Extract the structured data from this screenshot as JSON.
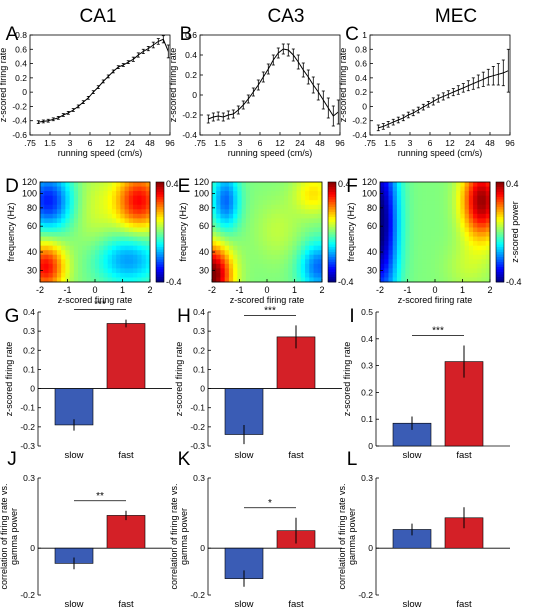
{
  "column_titles": [
    "CA1",
    "CA3",
    "MEC"
  ],
  "panel_letters": [
    "A",
    "B",
    "C",
    "D",
    "E",
    "F",
    "G",
    "H",
    "I",
    "J",
    "K",
    "L"
  ],
  "colors": {
    "slow": "#3A5CB5",
    "fast": "#D42027",
    "axis": "#000000"
  },
  "colorbar_label": "z-scored power",
  "colorbar_ticks": [
    "0.4",
    "-0.4"
  ],
  "chart_data": [
    {
      "id": "A",
      "type": "line",
      "x_ticks": [
        ".75",
        "1.5",
        "3",
        "6",
        "12",
        "24",
        "48",
        "96"
      ],
      "xlabel": "running speed (cm/s)",
      "ylabel": "z-scored firing rate",
      "xscale": "log",
      "ylim": [
        -0.6,
        0.8
      ],
      "y_ticks": [
        -0.6,
        -0.4,
        -0.2,
        0,
        0.2,
        0.4,
        0.6,
        0.8
      ],
      "y_tick_labels": [
        "-0.6",
        "-0.4",
        "-0.2",
        "0",
        "0.2",
        "0.4",
        "0.6",
        "0.8"
      ],
      "x": [
        1.0,
        1.19,
        1.41,
        1.68,
        2.0,
        2.38,
        2.83,
        3.36,
        4.0,
        4.76,
        5.66,
        6.73,
        8.0,
        9.51,
        11.31,
        13.45,
        16.0,
        19.03,
        22.63,
        26.91,
        32.0,
        38.05,
        45.25,
        53.82,
        64.0,
        76.11,
        90.51
      ],
      "y": [
        -0.42,
        -0.41,
        -0.4,
        -0.38,
        -0.36,
        -0.32,
        -0.29,
        -0.25,
        -0.2,
        -0.14,
        -0.08,
        0.0,
        0.07,
        0.15,
        0.22,
        0.29,
        0.35,
        0.38,
        0.42,
        0.46,
        0.52,
        0.57,
        0.61,
        0.66,
        0.71,
        0.74,
        0.57
      ],
      "err": [
        0.02,
        0.02,
        0.02,
        0.02,
        0.02,
        0.02,
        0.02,
        0.02,
        0.02,
        0.02,
        0.02,
        0.02,
        0.02,
        0.02,
        0.02,
        0.02,
        0.02,
        0.02,
        0.02,
        0.03,
        0.03,
        0.03,
        0.03,
        0.04,
        0.04,
        0.05,
        0.09
      ]
    },
    {
      "id": "B",
      "type": "line",
      "x_ticks": [
        ".75",
        "1.5",
        "3",
        "6",
        "12",
        "24",
        "48",
        "96"
      ],
      "xlabel": "running speed (cm/s)",
      "ylabel": "z-scored firing rate",
      "xscale": "log",
      "ylim": [
        -0.4,
        0.6
      ],
      "y_ticks": [
        -0.4,
        -0.2,
        0,
        0.2,
        0.4,
        0.6
      ],
      "y_tick_labels": [
        "-0.4",
        "-0.2",
        "0",
        "0.2",
        "0.4",
        "0.6"
      ],
      "x": [
        1.0,
        1.19,
        1.41,
        1.68,
        2.0,
        2.38,
        2.83,
        3.36,
        4.0,
        4.76,
        5.66,
        6.73,
        8.0,
        9.51,
        11.31,
        13.45,
        16.0,
        19.03,
        22.63,
        26.91,
        32.0,
        38.05,
        45.25,
        53.82,
        64.0,
        76.11,
        90.51
      ],
      "y": [
        -0.24,
        -0.22,
        -0.21,
        -0.22,
        -0.2,
        -0.19,
        -0.15,
        -0.1,
        -0.04,
        0.03,
        0.1,
        0.18,
        0.26,
        0.35,
        0.42,
        0.46,
        0.45,
        0.4,
        0.33,
        0.25,
        0.18,
        0.1,
        0.03,
        -0.05,
        -0.13,
        -0.21,
        -0.17
      ],
      "err": [
        0.04,
        0.04,
        0.04,
        0.04,
        0.04,
        0.04,
        0.04,
        0.04,
        0.04,
        0.04,
        0.05,
        0.05,
        0.05,
        0.05,
        0.05,
        0.05,
        0.06,
        0.06,
        0.07,
        0.07,
        0.07,
        0.08,
        0.08,
        0.09,
        0.1,
        0.1,
        0.12
      ]
    },
    {
      "id": "C",
      "type": "line",
      "x_ticks": [
        ".75",
        "1.5",
        "3",
        "6",
        "12",
        "24",
        "48",
        "96"
      ],
      "xlabel": "running speed (cm/s)",
      "ylabel": "z-scored firing rate",
      "xscale": "log",
      "ylim": [
        -0.4,
        1.0
      ],
      "y_ticks": [
        -0.4,
        -0.2,
        0,
        0.2,
        0.4,
        0.6,
        0.8,
        1
      ],
      "y_tick_labels": [
        "-0.4",
        "-0.2",
        "0",
        "0.2",
        "0.4",
        "0.6",
        "0.8",
        "1"
      ],
      "x": [
        1.0,
        1.19,
        1.41,
        1.68,
        2.0,
        2.38,
        2.83,
        3.36,
        4.0,
        4.76,
        5.66,
        6.73,
        8.0,
        9.51,
        11.31,
        13.45,
        16.0,
        19.03,
        22.63,
        26.91,
        32.0,
        38.05,
        45.25,
        53.82,
        64.0,
        76.11,
        90.51
      ],
      "y": [
        -0.3,
        -0.28,
        -0.25,
        -0.22,
        -0.19,
        -0.16,
        -0.12,
        -0.09,
        -0.05,
        -0.01,
        0.03,
        0.07,
        0.11,
        0.14,
        0.17,
        0.2,
        0.23,
        0.26,
        0.29,
        0.32,
        0.35,
        0.38,
        0.41,
        0.43,
        0.45,
        0.47,
        0.5
      ],
      "err": [
        0.04,
        0.04,
        0.04,
        0.04,
        0.04,
        0.04,
        0.04,
        0.04,
        0.04,
        0.04,
        0.04,
        0.05,
        0.05,
        0.05,
        0.05,
        0.05,
        0.06,
        0.06,
        0.07,
        0.08,
        0.09,
        0.1,
        0.11,
        0.13,
        0.15,
        0.18,
        0.3
      ]
    },
    {
      "id": "D",
      "type": "heatmap",
      "xlabel": "z-scored firing rate",
      "ylabel": "frequency (Hz)",
      "x_ticks": [
        "-2",
        "-1",
        "0",
        "1",
        "2"
      ],
      "y_ticks": [
        "30",
        "40",
        "60",
        "80",
        "100",
        "120"
      ],
      "xlim": [
        -2,
        2
      ],
      "yscale": "log",
      "ylim": [
        25,
        120
      ],
      "clim": [
        -0.4,
        0.4
      ],
      "pattern": [
        {
          "x": -1.8,
          "logf": 1.5,
          "sx": 0.5,
          "sy": 0.12,
          "a": 0.3
        },
        {
          "x": -1.7,
          "logf": 1.95,
          "sx": 0.6,
          "sy": 0.14,
          "a": -0.28
        },
        {
          "x": 1.6,
          "logf": 1.95,
          "sx": 0.6,
          "sy": 0.14,
          "a": 0.3
        },
        {
          "x": 1.2,
          "logf": 1.55,
          "sx": 0.8,
          "sy": 0.12,
          "a": -0.18
        },
        {
          "x": 0.0,
          "logf": 1.9,
          "sx": 0.6,
          "sy": 0.2,
          "a": 0.06
        }
      ]
    },
    {
      "id": "E",
      "type": "heatmap",
      "xlabel": "z-scored firing rate",
      "ylabel": "frequency (Hz)",
      "x_ticks": [
        "-2",
        "-1",
        "0",
        "1",
        "2"
      ],
      "y_ticks": [
        "30",
        "40",
        "60",
        "80",
        "100",
        "120"
      ],
      "xlim": [
        -2,
        2
      ],
      "yscale": "log",
      "ylim": [
        25,
        120
      ],
      "clim": [
        -0.4,
        0.4
      ],
      "pattern": [
        {
          "x": -2.0,
          "logf": 1.45,
          "sx": 0.5,
          "sy": 0.14,
          "a": 0.42
        },
        {
          "x": -1.5,
          "logf": 1.95,
          "sx": 0.35,
          "sy": 0.14,
          "a": -0.22
        },
        {
          "x": 1.9,
          "logf": 1.5,
          "sx": 0.5,
          "sy": 0.12,
          "a": -0.22
        },
        {
          "x": 1.7,
          "logf": 2.0,
          "sx": 0.5,
          "sy": 0.1,
          "a": 0.12
        },
        {
          "x": 0.4,
          "logf": 1.75,
          "sx": 0.6,
          "sy": 0.15,
          "a": 0.05
        }
      ]
    },
    {
      "id": "F",
      "type": "heatmap",
      "xlabel": "z-scored firing rate",
      "ylabel": "frequency (Hz)",
      "x_ticks": [
        "-2",
        "-1",
        "0",
        "1",
        "2"
      ],
      "y_ticks": [
        "30",
        "40",
        "60",
        "80",
        "100",
        "120"
      ],
      "xlim": [
        -2,
        2
      ],
      "yscale": "log",
      "ylim": [
        25,
        120
      ],
      "clim": [
        -0.4,
        0.4
      ],
      "pattern": [
        {
          "x": -2.0,
          "logf": 1.8,
          "sx": 0.45,
          "sy": 0.4,
          "a": -0.42
        },
        {
          "x": 1.7,
          "logf": 1.95,
          "sx": 0.5,
          "sy": 0.18,
          "a": 0.38
        },
        {
          "x": 1.2,
          "logf": 1.5,
          "sx": 0.6,
          "sy": 0.12,
          "a": 0.05
        }
      ]
    },
    {
      "id": "G",
      "type": "bar",
      "categories": [
        "slow",
        "fast"
      ],
      "values": [
        -0.19,
        0.34
      ],
      "errors": [
        0.03,
        0.02
      ],
      "ylabel": "z-scored firing rate",
      "ylim": [
        -0.3,
        0.4
      ],
      "y_ticks": [
        -0.3,
        -0.2,
        -0.1,
        0,
        0.1,
        0.2,
        0.3,
        0.4
      ],
      "y_tick_labels": [
        "-0.3",
        "-0.2",
        "-0.1",
        "0",
        "0.1",
        "0.2",
        "0.3",
        "0.4"
      ],
      "significance": "***"
    },
    {
      "id": "H",
      "type": "bar",
      "categories": [
        "slow",
        "fast"
      ],
      "values": [
        -0.24,
        0.27
      ],
      "errors": [
        0.05,
        0.06
      ],
      "ylabel": "z-scored firing rate",
      "ylim": [
        -0.3,
        0.4
      ],
      "y_ticks": [
        -0.3,
        -0.2,
        -0.1,
        0,
        0.1,
        0.2,
        0.3,
        0.4
      ],
      "y_tick_labels": [
        "-0.3",
        "-0.2",
        "-0.1",
        "0",
        "0.1",
        "0.2",
        "0.3",
        "0.4"
      ],
      "significance": "***"
    },
    {
      "id": "I",
      "type": "bar",
      "categories": [
        "slow",
        "fast"
      ],
      "values": [
        0.085,
        0.315
      ],
      "errors": [
        0.025,
        0.06
      ],
      "ylabel": "z-scored firing rate",
      "ylim": [
        0,
        0.5
      ],
      "y_ticks": [
        0,
        0.1,
        0.2,
        0.3,
        0.4,
        0.5
      ],
      "y_tick_labels": [
        "0",
        "0.1",
        "0.2",
        "0.3",
        "0.4",
        "0.5"
      ],
      "significance": "***"
    },
    {
      "id": "J",
      "type": "bar",
      "categories": [
        "slow",
        "fast"
      ],
      "values": [
        -0.065,
        0.14
      ],
      "errors": [
        0.025,
        0.02
      ],
      "ylabel": "correlation of firing rate vs. gamma power",
      "ylim": [
        -0.2,
        0.3
      ],
      "y_ticks": [
        -0.2,
        0,
        0.3
      ],
      "y_tick_labels": [
        "-0.2",
        "0",
        "0.3"
      ],
      "significance": "**"
    },
    {
      "id": "K",
      "type": "bar",
      "categories": [
        "slow",
        "fast"
      ],
      "values": [
        -0.13,
        0.075
      ],
      "errors": [
        0.035,
        0.055
      ],
      "ylabel": "correlation of firing rate vs. gamma power",
      "ylim": [
        -0.2,
        0.3
      ],
      "y_ticks": [
        -0.2,
        0,
        0.3
      ],
      "y_tick_labels": [
        "-0.2",
        "0",
        "0.3"
      ],
      "significance": "*"
    },
    {
      "id": "L",
      "type": "bar",
      "categories": [
        "slow",
        "fast"
      ],
      "values": [
        0.08,
        0.13
      ],
      "errors": [
        0.025,
        0.045
      ],
      "ylabel": "correlation of firing rate vs. gamma power",
      "ylim": [
        -0.2,
        0.3
      ],
      "y_ticks": [
        -0.2,
        0,
        0.3
      ],
      "y_tick_labels": [
        "-0.2",
        "0",
        "0.3"
      ],
      "significance": ""
    }
  ]
}
